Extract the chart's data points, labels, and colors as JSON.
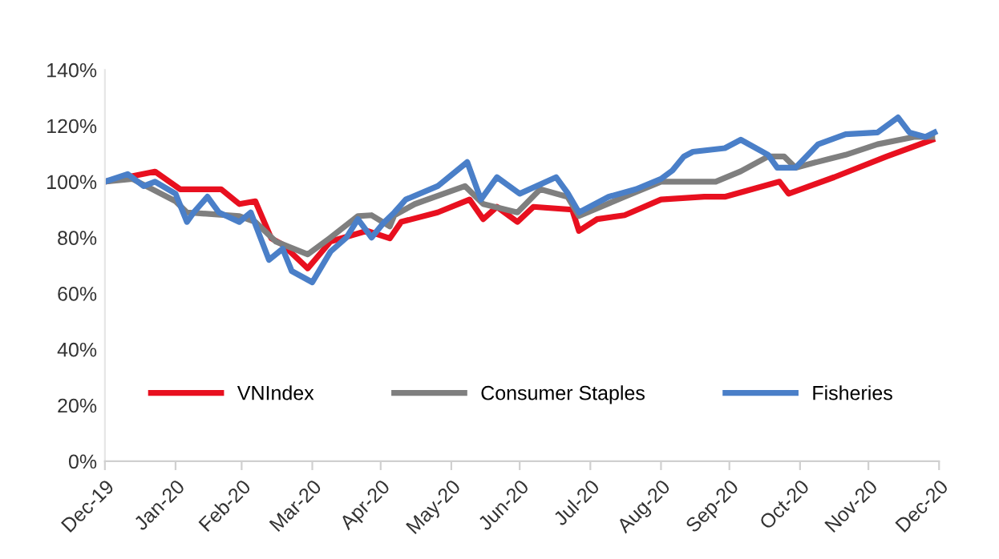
{
  "chart_data": {
    "type": "line",
    "xlim": [
      "2019-12-31",
      "2020-12-31"
    ],
    "xticks": [
      {
        "value": "2019-12-31",
        "label": "Dec-19"
      },
      {
        "value": "2020-01-31",
        "label": "Jan-20"
      },
      {
        "value": "2020-02-29",
        "label": "Feb-20"
      },
      {
        "value": "2020-03-31",
        "label": "Mar-20"
      },
      {
        "value": "2020-04-30",
        "label": "Apr-20"
      },
      {
        "value": "2020-05-31",
        "label": "May-20"
      },
      {
        "value": "2020-06-30",
        "label": "Jun-20"
      },
      {
        "value": "2020-07-31",
        "label": "Jul-20"
      },
      {
        "value": "2020-08-31",
        "label": "Aug-20"
      },
      {
        "value": "2020-09-30",
        "label": "Sep-20"
      },
      {
        "value": "2020-10-31",
        "label": "Oct-20"
      },
      {
        "value": "2020-11-30",
        "label": "Nov-20"
      },
      {
        "value": "2020-12-31",
        "label": "Dec-20"
      }
    ],
    "ylim": [
      0,
      140
    ],
    "yticks": [
      {
        "value": 0,
        "label": "0%"
      },
      {
        "value": 20,
        "label": "20%"
      },
      {
        "value": 40,
        "label": "40%"
      },
      {
        "value": 60,
        "label": "60%"
      },
      {
        "value": 80,
        "label": "80%"
      },
      {
        "value": 100,
        "label": "100%"
      },
      {
        "value": 120,
        "label": "120%"
      },
      {
        "value": 140,
        "label": "140%"
      }
    ],
    "grid": false,
    "legend": "bottom",
    "marker": "none",
    "line_style": "solid",
    "series": [
      {
        "name": "VNIndex",
        "color": "#e8101f",
        "x": [
          "2019-12-31",
          "2020-01-22",
          "2020-02-02",
          "2020-02-20",
          "2020-02-28",
          "2020-03-06",
          "2020-03-13",
          "2020-03-18",
          "2020-03-29",
          "2020-04-08",
          "2020-04-24",
          "2020-05-04",
          "2020-05-09",
          "2020-05-25",
          "2020-06-08",
          "2020-06-14",
          "2020-06-20",
          "2020-06-29",
          "2020-07-06",
          "2020-07-23",
          "2020-07-26",
          "2020-08-03",
          "2020-08-15",
          "2020-08-31",
          "2020-09-19",
          "2020-09-28",
          "2020-10-22",
          "2020-10-26",
          "2020-11-15",
          "2020-12-08",
          "2020-12-28"
        ],
        "values": [
          100,
          103.6,
          97.3,
          97.3,
          92,
          93,
          79.7,
          77.5,
          69,
          78.6,
          82.4,
          79.7,
          85.6,
          89,
          93.6,
          86.6,
          91,
          85.6,
          91,
          90,
          82.4,
          86.6,
          88,
          93.6,
          94.6,
          94.6,
          100,
          95.7,
          101.6,
          109,
          115
        ]
      },
      {
        "name": "Consumer Staples",
        "color": "#7f7f7f",
        "x": [
          "2019-12-31",
          "2020-01-12",
          "2020-01-31",
          "2020-02-05",
          "2020-02-28",
          "2020-03-06",
          "2020-03-15",
          "2020-03-29",
          "2020-04-08",
          "2020-04-20",
          "2020-04-26",
          "2020-05-04",
          "2020-05-06",
          "2020-05-15",
          "2020-06-06",
          "2020-06-14",
          "2020-06-29",
          "2020-07-09",
          "2020-07-21",
          "2020-07-26",
          "2020-08-15",
          "2020-08-31",
          "2020-09-05",
          "2020-09-24",
          "2020-10-05",
          "2020-10-17",
          "2020-10-24",
          "2020-10-29",
          "2020-11-12",
          "2020-11-20",
          "2020-12-04",
          "2020-12-20",
          "2020-12-28"
        ],
        "values": [
          100,
          101,
          93,
          89,
          87.7,
          85.6,
          78.6,
          74,
          80,
          87.7,
          88,
          84,
          88,
          92,
          98.4,
          92,
          89,
          97.3,
          94.6,
          87.7,
          94.6,
          100,
          100,
          100,
          103.7,
          109,
          109,
          105,
          108,
          109.6,
          113.4,
          116,
          116
        ]
      },
      {
        "name": "Fisheries",
        "color": "#4a7fc8",
        "x": [
          "2019-12-31",
          "2020-01-10",
          "2020-01-17",
          "2020-01-22",
          "2020-01-31",
          "2020-02-05",
          "2020-02-08",
          "2020-02-14",
          "2020-02-19",
          "2020-02-28",
          "2020-03-04",
          "2020-03-12",
          "2020-03-18",
          "2020-03-22",
          "2020-03-31",
          "2020-04-08",
          "2020-04-15",
          "2020-04-20",
          "2020-04-26",
          "2020-05-01",
          "2020-05-06",
          "2020-05-11",
          "2020-05-25",
          "2020-06-07",
          "2020-06-13",
          "2020-06-20",
          "2020-06-30",
          "2020-07-16",
          "2020-07-21",
          "2020-07-26",
          "2020-08-08",
          "2020-08-20",
          "2020-08-31",
          "2020-09-05",
          "2020-09-10",
          "2020-09-14",
          "2020-09-28",
          "2020-10-05",
          "2020-10-17",
          "2020-10-21",
          "2020-10-29",
          "2020-11-08",
          "2020-11-20",
          "2020-12-04",
          "2020-12-13",
          "2020-12-18",
          "2020-12-25",
          "2020-12-29"
        ],
        "values": [
          100,
          102.7,
          98.4,
          100,
          95.7,
          85.6,
          89,
          94.6,
          89,
          85.6,
          89,
          72,
          76,
          68,
          64,
          75,
          80,
          86.6,
          80,
          85,
          89,
          93.6,
          98.4,
          107,
          93.6,
          101.6,
          95.7,
          101.6,
          96,
          89,
          94.6,
          97.3,
          101,
          104,
          109,
          110.7,
          112,
          115,
          109.6,
          105,
          105,
          113.4,
          117,
          117.6,
          123,
          117.6,
          116,
          117.6
        ]
      }
    ]
  }
}
